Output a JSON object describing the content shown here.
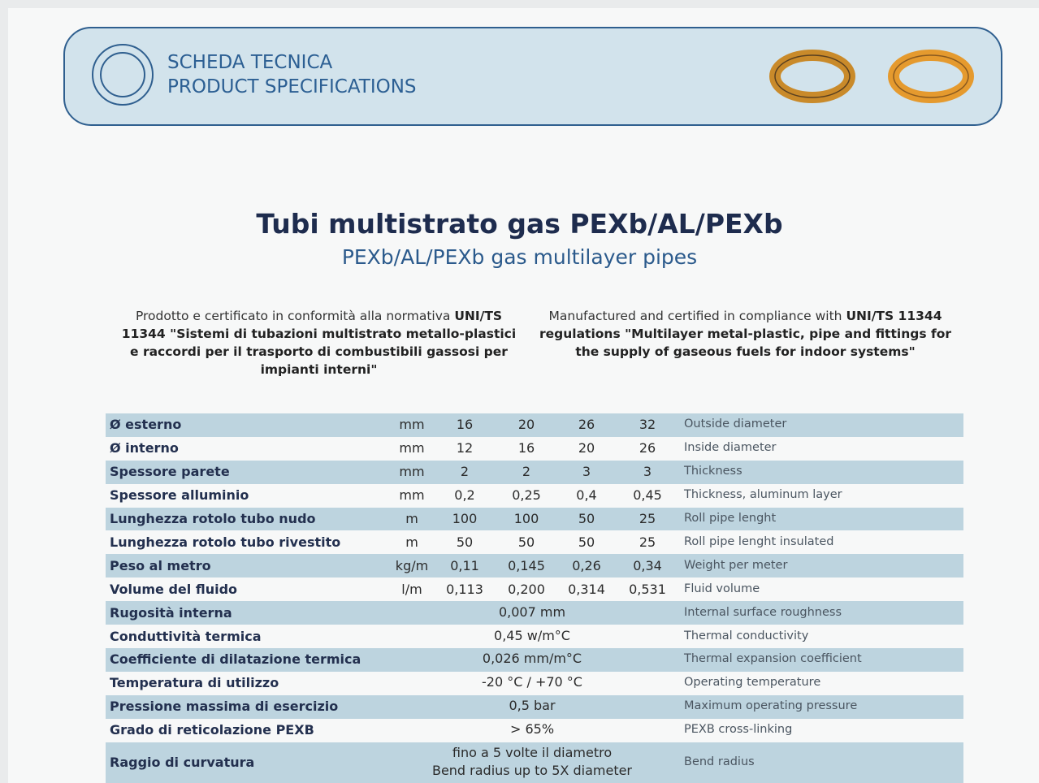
{
  "header": {
    "title_lines": [
      "SCHEDA TECNICA",
      "PRODUCT SPECIFICATIONS"
    ]
  },
  "title": "Tubi multistrato gas PEXb/AL/PEXb",
  "subtitle": "PEXb/AL/PEXb gas multilayer pipes",
  "intro": {
    "it": [
      "Prodotto e certificato in conformità alla normativa ",
      "UNI/TS 11344 \"Sistemi di tubazioni multistrato metallo-plastici e raccordi per il trasporto di combustibili gassosi per impianti interni\""
    ],
    "en": [
      "Manufactured and certified in compliance with ",
      "UNI/TS 11344 regulations \"Multilayer metal-plastic, pipe and fittings for the supply of gaseous fuels for indoor systems\""
    ]
  },
  "table": {
    "rows": [
      {
        "it": "Ø esterno",
        "unit": "mm",
        "values": [
          "16",
          "20",
          "26",
          "32"
        ],
        "en": "Outside diameter"
      },
      {
        "it": "Ø interno",
        "unit": "mm",
        "values": [
          "12",
          "16",
          "20",
          "26"
        ],
        "en": "Inside diameter"
      },
      {
        "it": "Spessore parete",
        "unit": "mm",
        "values": [
          "2",
          "2",
          "3",
          "3"
        ],
        "en": "Thickness"
      },
      {
        "it": "Spessore alluminio",
        "unit": "mm",
        "values": [
          "0,2",
          "0,25",
          "0,4",
          "0,45"
        ],
        "en": "Thickness, aluminum layer"
      },
      {
        "it": "Lunghezza rotolo tubo nudo",
        "unit": "m",
        "values": [
          "100",
          "100",
          "50",
          "25"
        ],
        "en": "Roll pipe lenght"
      },
      {
        "it": "Lunghezza rotolo tubo rivestito",
        "unit": "m",
        "values": [
          "50",
          "50",
          "50",
          "25"
        ],
        "en": "Roll pipe lenght insulated"
      },
      {
        "it": "Peso al metro",
        "unit": "kg/m",
        "values": [
          "0,11",
          "0,145",
          "0,26",
          "0,34"
        ],
        "en": "Weight per meter"
      },
      {
        "it": "Volume del fluido",
        "unit": "l/m",
        "values": [
          "0,113",
          "0,200",
          "0,314",
          "0,531"
        ],
        "en": "Fluid volume"
      },
      {
        "it": "Rugosità interna",
        "value": [
          "0,007 mm"
        ],
        "en": "Internal surface roughness"
      },
      {
        "it": "Conduttività termica",
        "value": [
          "0,45 w/m°C"
        ],
        "en": "Thermal conductivity"
      },
      {
        "it": "Coefficiente di dilatazione termica",
        "value": [
          "0,026 mm/m°C"
        ],
        "en": "Thermal expansion coefficient"
      },
      {
        "it": "Temperatura di utilizzo",
        "value": [
          "-20 °C / +70 °C"
        ],
        "en": "Operating temperature"
      },
      {
        "it": "Pressione massima di esercizio",
        "value": [
          "0,5 bar"
        ],
        "en": "Maximum operating pressure"
      },
      {
        "it": "Grado di reticolazione PEXB",
        "value": [
          "> 65%"
        ],
        "en": "PEXB cross-linking"
      },
      {
        "it": "Raggio di curvatura",
        "value": [
          "fino a 5 volte il diametro",
          "Bend radius up to 5X diameter"
        ],
        "en": "Bend radius"
      }
    ]
  }
}
